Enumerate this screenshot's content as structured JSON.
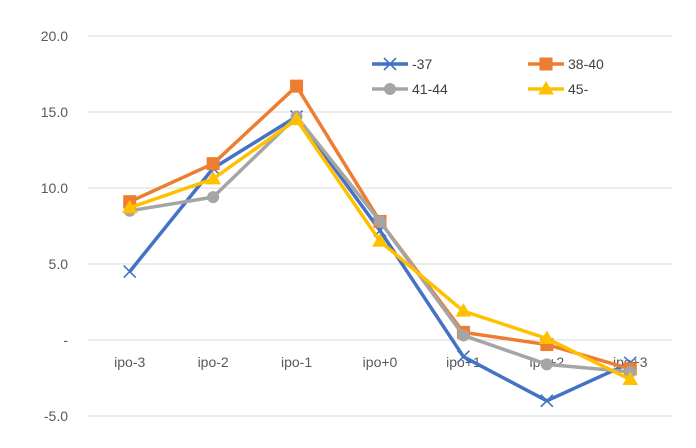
{
  "chart_data": {
    "type": "line",
    "title": "",
    "xlabel": "",
    "ylabel": "",
    "categories": [
      "ipo-3",
      "ipo-2",
      "ipo-1",
      "ipo+0",
      "ipo+1",
      "ipo+2",
      "ipo+3"
    ],
    "y_ticks": [
      "20.0",
      "15.0",
      "10.0",
      "5.0",
      "-",
      "-5.0"
    ],
    "ylim": [
      -5,
      20
    ],
    "grid": "horizontal",
    "legend_position": "top-right",
    "series": [
      {
        "name": "-37",
        "color": "#4472C4",
        "marker": "x",
        "values": [
          4.5,
          11.3,
          14.7,
          7.2,
          -1.1,
          -4.0,
          -1.5
        ]
      },
      {
        "name": "38-40",
        "color": "#ED7D31",
        "marker": "square",
        "values": [
          9.1,
          11.6,
          16.7,
          7.8,
          0.5,
          -0.3,
          -1.9
        ]
      },
      {
        "name": "41-44",
        "color": "#A5A5A5",
        "marker": "circle",
        "values": [
          8.5,
          9.4,
          14.7,
          7.8,
          0.3,
          -1.6,
          -2.1
        ]
      },
      {
        "name": "45-",
        "color": "#FFC000",
        "marker": "triangle",
        "values": [
          8.7,
          10.6,
          14.5,
          6.5,
          1.9,
          0.1,
          -2.6
        ]
      }
    ]
  }
}
